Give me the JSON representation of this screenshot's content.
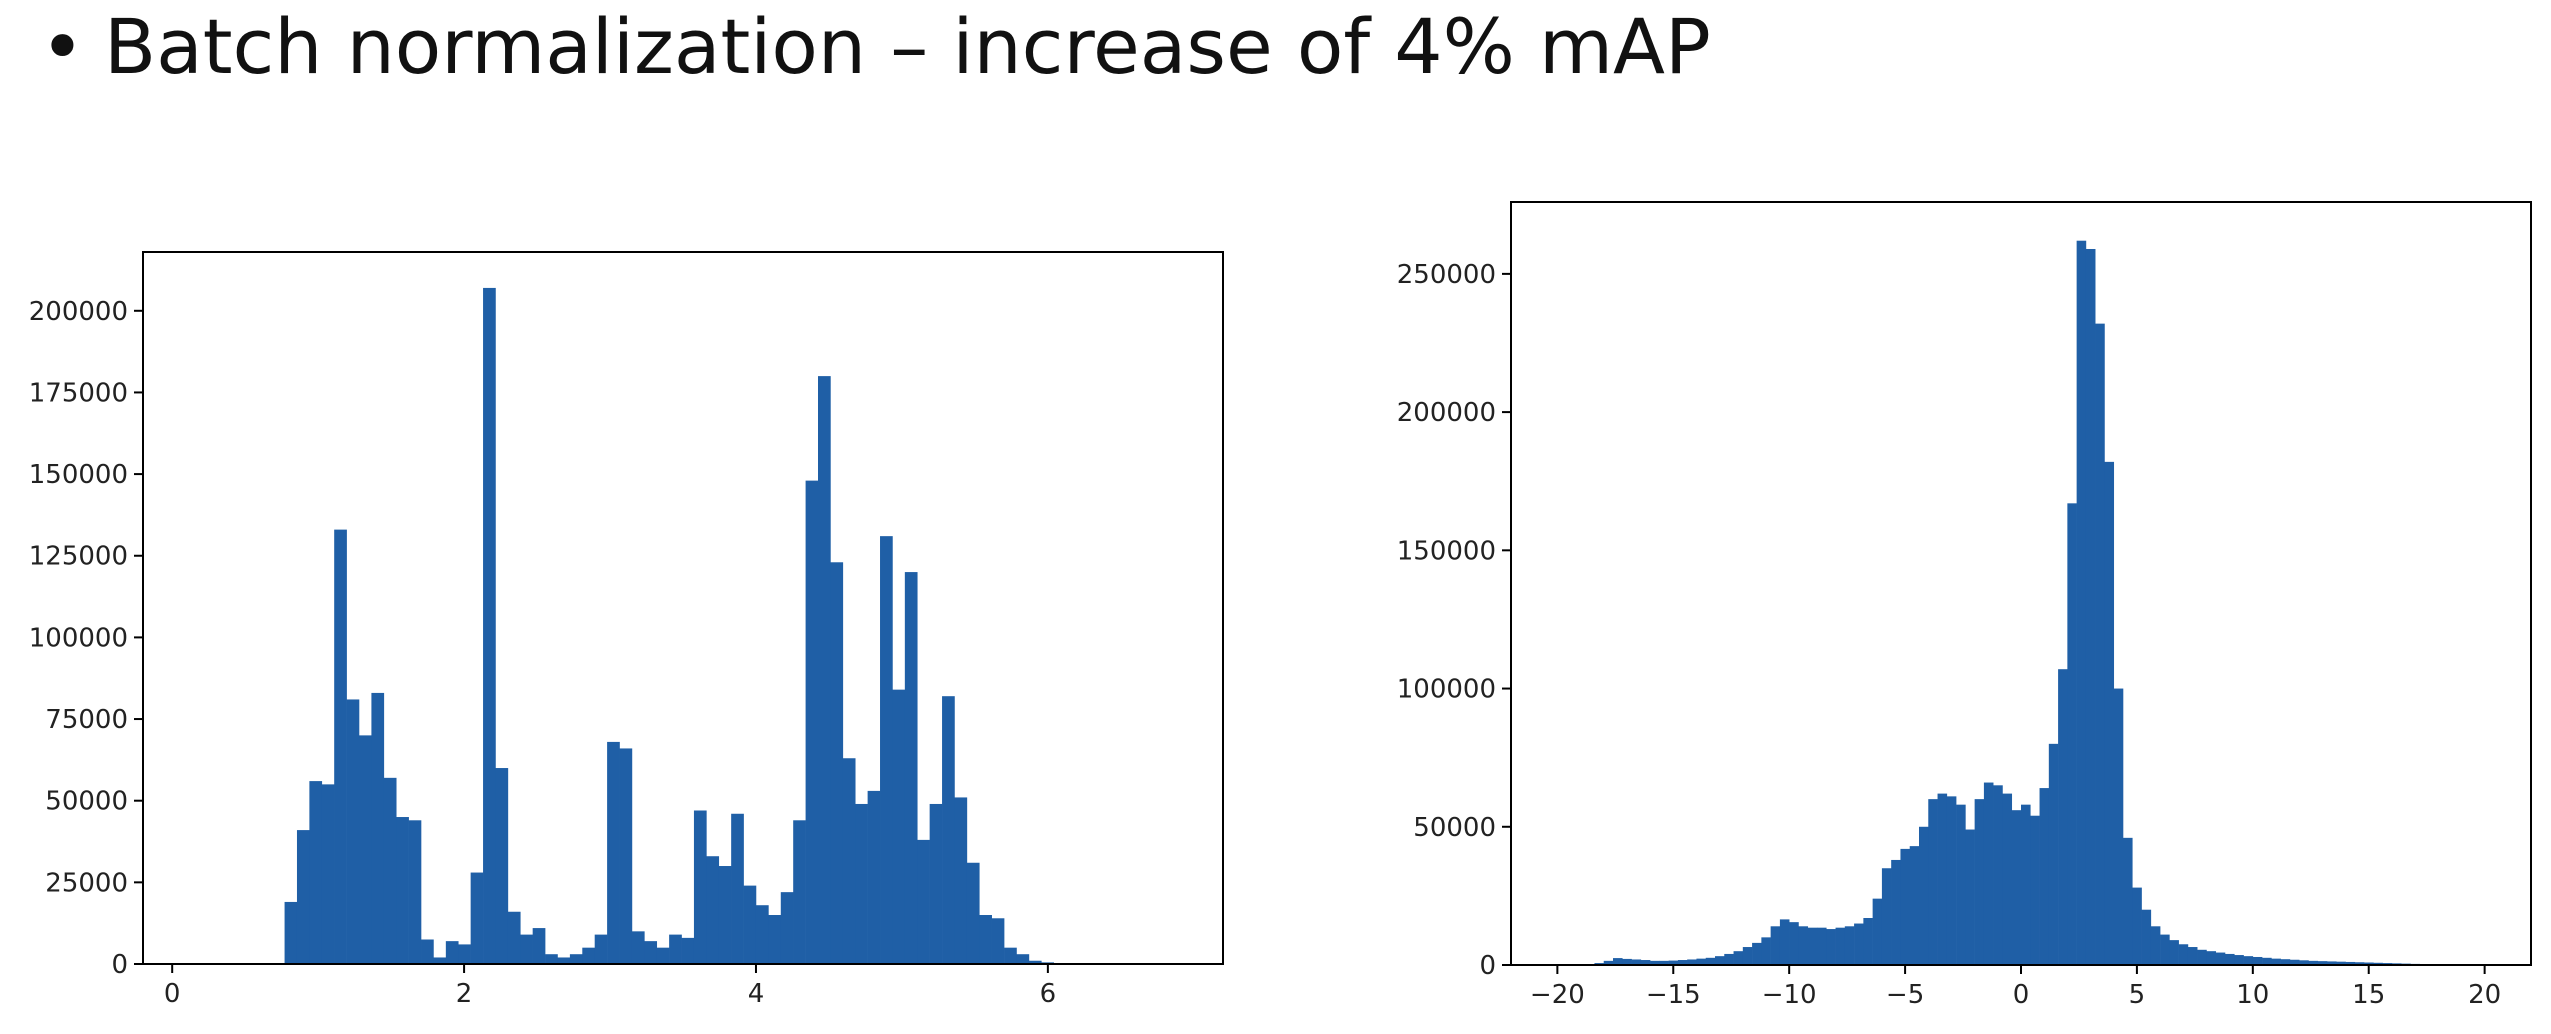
{
  "slide": {
    "bullet": "•",
    "title": "Batch normalization – increase of 4% mAP"
  },
  "colors": {
    "bar": "#1f5fa6",
    "axis": "#000000",
    "text": "#222222"
  },
  "chart_data": [
    {
      "type": "bar",
      "title": "",
      "xlabel": "",
      "ylabel": "",
      "bin_start": 0.6,
      "bin_width": 0.085,
      "counts": [
        0,
        0,
        19000,
        41000,
        56000,
        55000,
        133000,
        81000,
        70000,
        83000,
        57000,
        45000,
        44000,
        7500,
        2000,
        7000,
        6000,
        28000,
        207000,
        60000,
        16000,
        9000,
        11000,
        3000,
        2000,
        3000,
        5000,
        9000,
        68000,
        66000,
        10000,
        7000,
        5000,
        9000,
        8000,
        47000,
        33000,
        30000,
        46000,
        24000,
        18000,
        15000,
        22000,
        44000,
        148000,
        180000,
        123000,
        63000,
        49000,
        53000,
        131000,
        84000,
        120000,
        38000,
        49000,
        82000,
        51000,
        31000,
        15000,
        14000,
        5000,
        3000,
        1000,
        500,
        0
      ],
      "xlim": [
        -0.2,
        7.2
      ],
      "ylim": [
        0,
        218000
      ],
      "xticks": [
        0,
        2,
        4,
        6
      ],
      "xtick_labels": [
        "0",
        "2",
        "4",
        "6"
      ],
      "yticks": [
        0,
        25000,
        50000,
        75000,
        100000,
        125000,
        150000,
        175000,
        200000
      ],
      "ytick_labels": [
        "0",
        "25000",
        "50000",
        "75000",
        "100000",
        "125000",
        "150000",
        "175000",
        "200000"
      ],
      "grid": false
    },
    {
      "type": "bar",
      "title": "",
      "xlabel": "",
      "ylabel": "",
      "bin_start": -20,
      "bin_width": 0.4,
      "counts": [
        0,
        0,
        0,
        300,
        700,
        1500,
        2500,
        2200,
        2000,
        1800,
        1500,
        1500,
        1600,
        1800,
        2000,
        2300,
        2600,
        3200,
        4000,
        5000,
        6500,
        8000,
        10000,
        14000,
        16500,
        15500,
        14000,
        13500,
        13500,
        13000,
        13500,
        14000,
        15000,
        17000,
        24000,
        35000,
        38000,
        42000,
        43000,
        50000,
        60000,
        62000,
        61000,
        58000,
        49000,
        60000,
        66000,
        65000,
        62000,
        56000,
        58000,
        54000,
        64000,
        80000,
        107000,
        167000,
        262000,
        259000,
        232000,
        182000,
        100000,
        46000,
        28000,
        20000,
        14000,
        11000,
        9000,
        7500,
        6500,
        5500,
        5000,
        4500,
        4000,
        3600,
        3200,
        2900,
        2600,
        2300,
        2100,
        1900,
        1700,
        1500,
        1400,
        1300,
        1200,
        1100,
        1000,
        900,
        800,
        700,
        600,
        500,
        400,
        300,
        200,
        150,
        100,
        50,
        20,
        0,
        0,
        0,
        0,
        0
      ],
      "xlim": [
        -22,
        22
      ],
      "ylim": [
        0,
        276000
      ],
      "xticks": [
        -20,
        -15,
        -10,
        -5,
        0,
        5,
        10,
        15,
        20
      ],
      "xtick_labels": [
        "−20",
        "−15",
        "−10",
        "−5",
        "0",
        "5",
        "10",
        "15",
        "20"
      ],
      "yticks": [
        0,
        50000,
        100000,
        150000,
        200000,
        250000
      ],
      "ytick_labels": [
        "0",
        "50000",
        "100000",
        "150000",
        "200000",
        "250000"
      ],
      "grid": false
    }
  ]
}
